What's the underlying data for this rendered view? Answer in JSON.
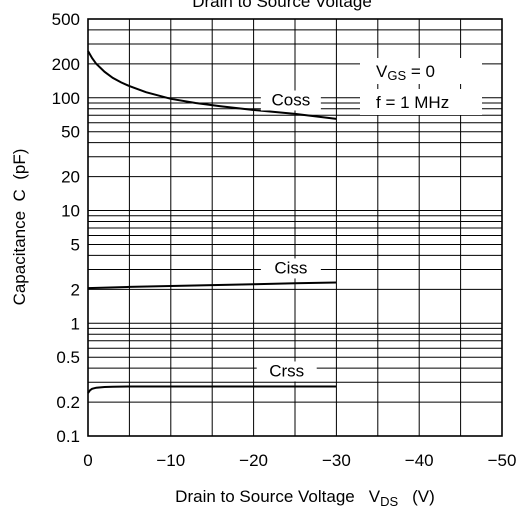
{
  "chart_data": {
    "type": "line",
    "title": "Drain to Source Voltage",
    "xlabel": "Drain to Source Voltage",
    "xlabel_symbol": "V",
    "xlabel_subscript": "DS",
    "xlabel_unit": "(V)",
    "ylabel": "Capacitance  C  (pF)",
    "x_scale": "linear",
    "y_scale": "log",
    "xlim": [
      0,
      -50
    ],
    "ylim": [
      0.1,
      500
    ],
    "x_ticks": [
      "0",
      "−10",
      "−20",
      "−30",
      "−40",
      "−50"
    ],
    "x_tick_values": [
      0,
      -10,
      -20,
      -30,
      -40,
      -50
    ],
    "y_ticks": [
      "0.1",
      "0.2",
      "0.5",
      "1",
      "2",
      "5",
      "10",
      "20",
      "50",
      "100",
      "200",
      "500"
    ],
    "y_tick_values": [
      0.1,
      0.2,
      0.5,
      1,
      2,
      5,
      10,
      20,
      50,
      100,
      200,
      500
    ],
    "grid": true,
    "conditions": {
      "vgs_symbol": "V",
      "vgs_subscript": "GS",
      "vgs_value": " = 0",
      "freq": "f = 1 MHz"
    },
    "series": [
      {
        "name": "Coss",
        "x": [
          0,
          -0.5,
          -1,
          -2,
          -3,
          -4,
          -5,
          -7,
          -10,
          -13,
          -16,
          -20,
          -25,
          -30
        ],
        "y": [
          260,
          225,
          200,
          170,
          150,
          137,
          127,
          112,
          98,
          90,
          84,
          78,
          72,
          65
        ]
      },
      {
        "name": "Ciss",
        "x": [
          0,
          -5,
          -10,
          -15,
          -20,
          -25,
          -30
        ],
        "y": [
          2.05,
          2.1,
          2.14,
          2.18,
          2.22,
          2.26,
          2.3
        ]
      },
      {
        "name": "Crss",
        "x": [
          0,
          -0.25,
          -0.5,
          -1,
          -2,
          -3,
          -5,
          -10,
          -15,
          -20,
          -25,
          -30
        ],
        "y": [
          0.24,
          0.255,
          0.262,
          0.268,
          0.272,
          0.274,
          0.275,
          0.275,
          0.275,
          0.275,
          0.275,
          0.275
        ]
      }
    ]
  }
}
